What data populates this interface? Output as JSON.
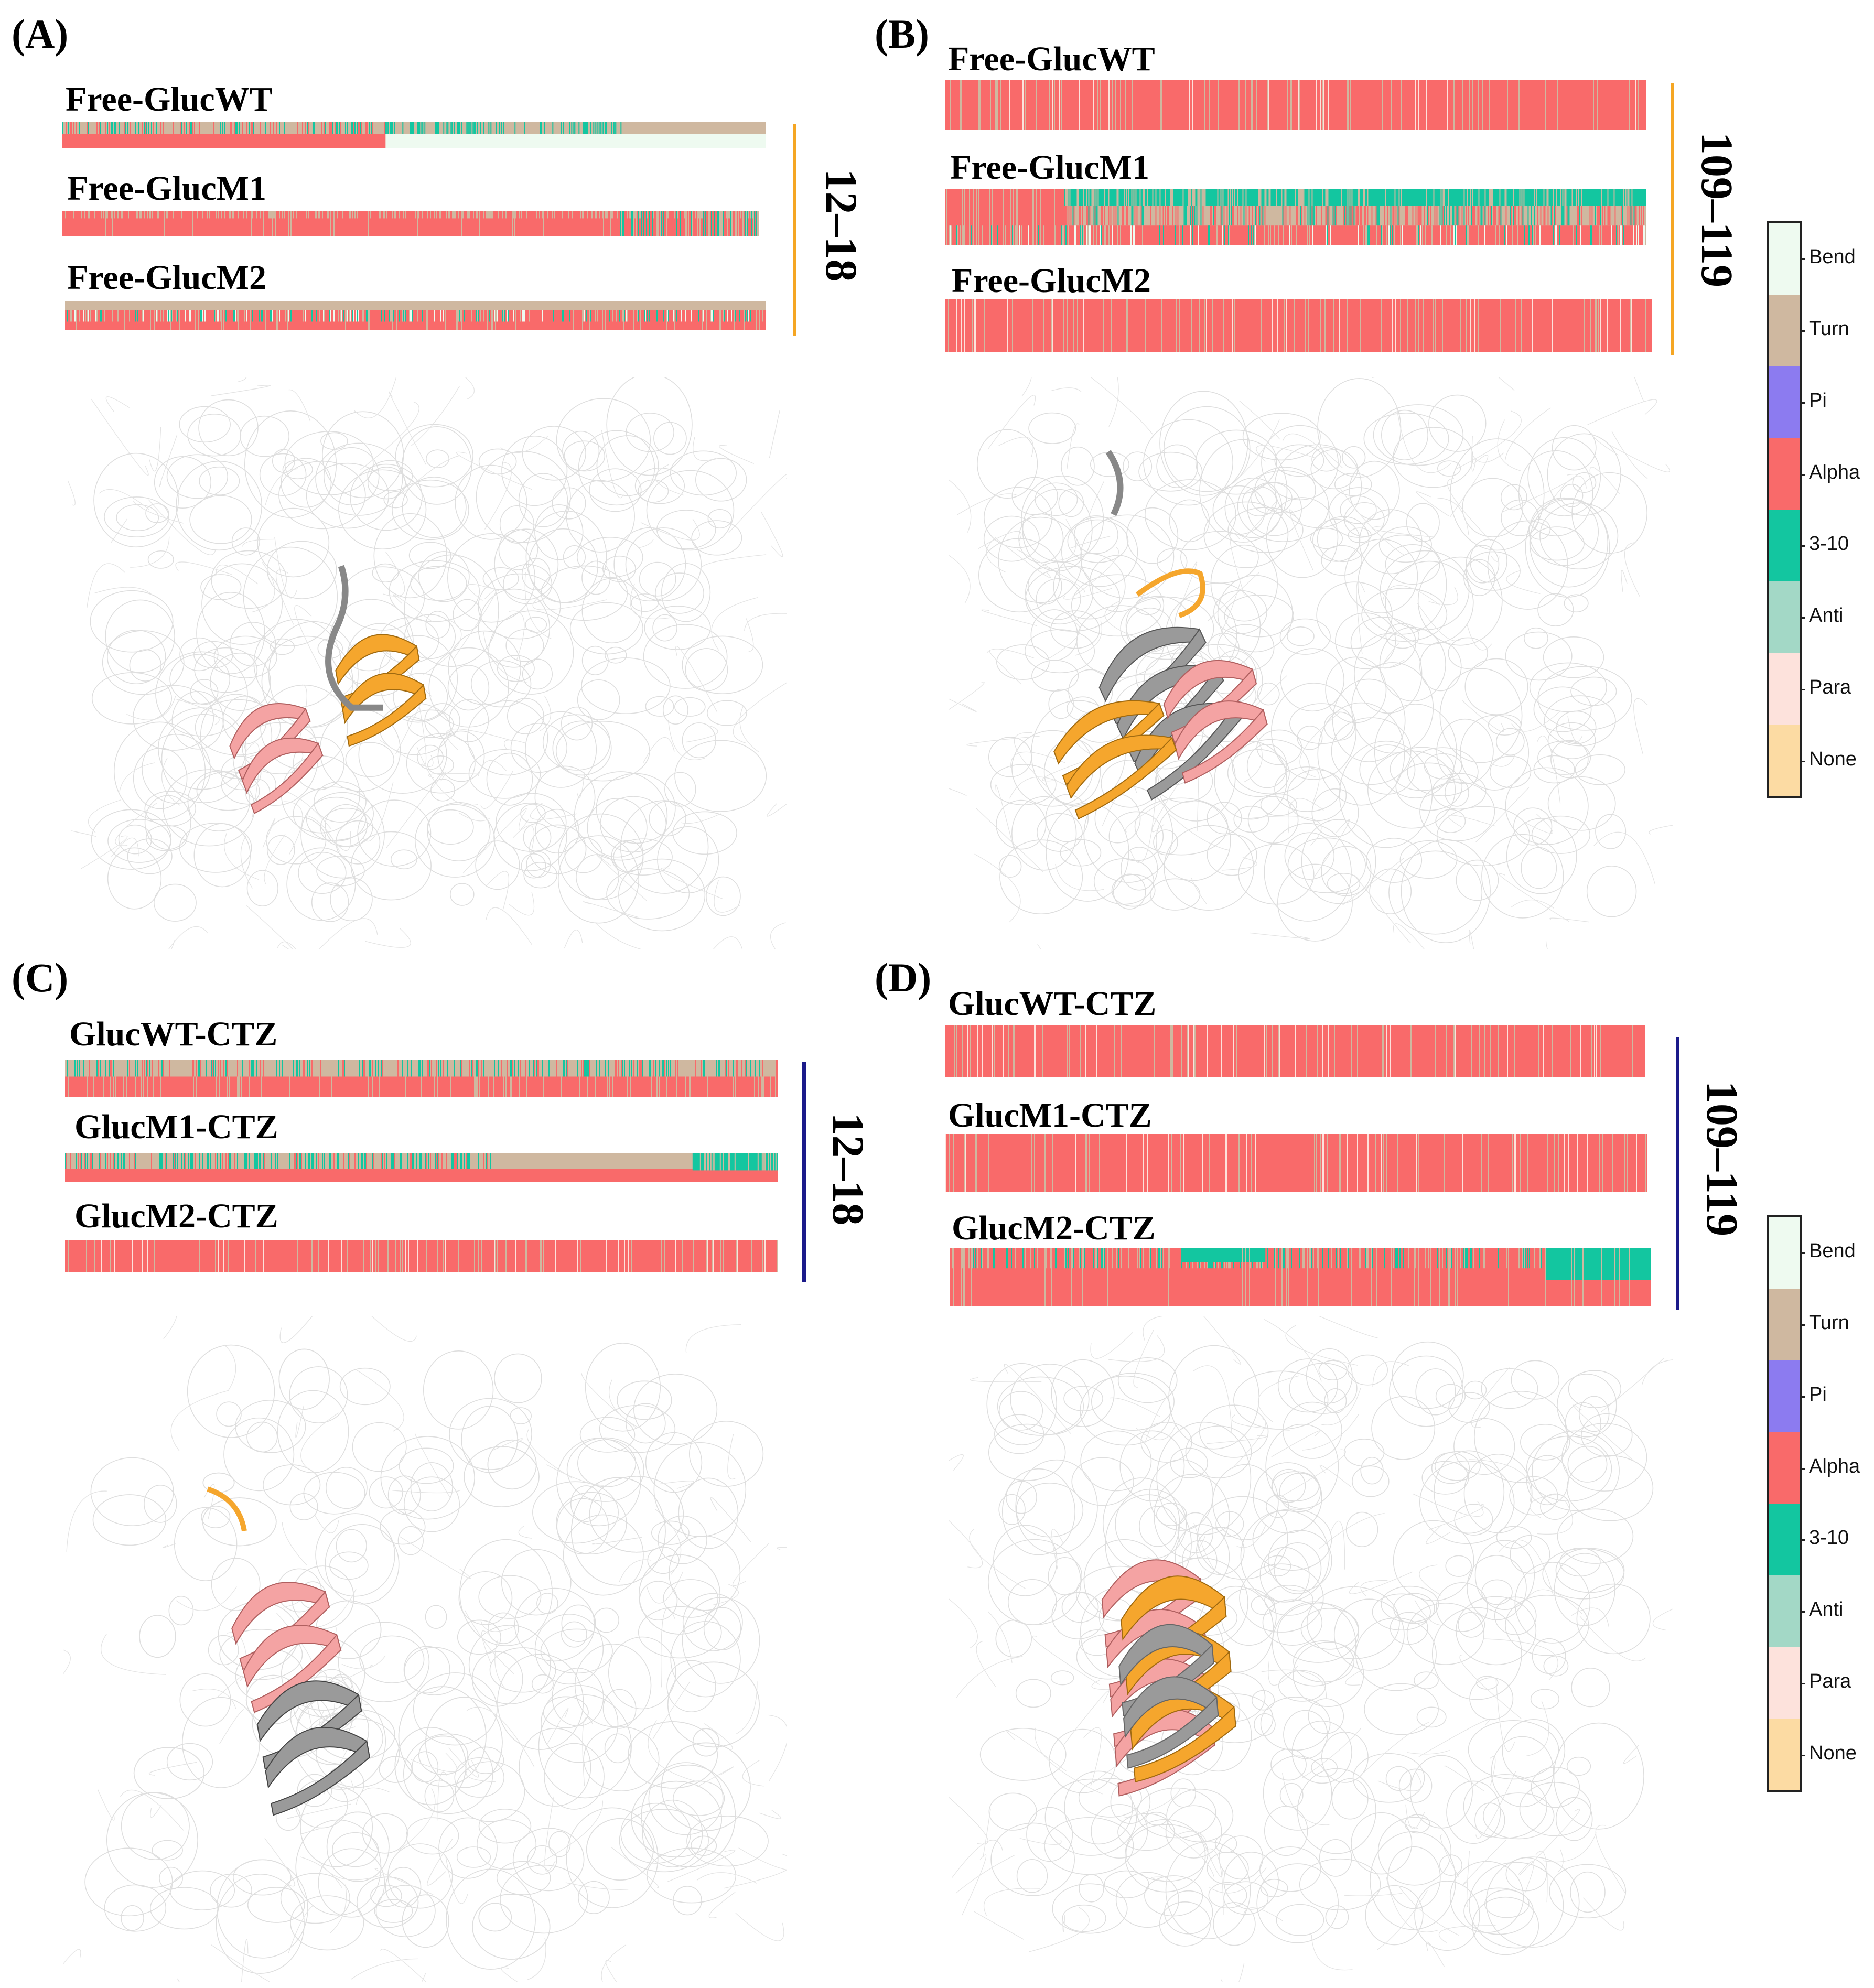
{
  "colors": {
    "Bend": "#eefaf0",
    "Turn": "#cfb8a0",
    "Pi": "#8c7bf0",
    "Alpha": "#f96a6a",
    "3-10": "#13c6a0",
    "Anti": "#a3d8c6",
    "Para": "#fde2dc",
    "None": "#fcdba3",
    "orange_line": "#f5a623",
    "navy_line": "#1b1a8a",
    "ribbon_orange": "#f5a62d",
    "ribbon_pink": "#f4a3a3",
    "ribbon_grey": "#9a9a9a"
  },
  "panels": [
    {
      "letter": "(A)",
      "range": "12–18",
      "tracks": [
        {
          "label": "Free-GlucWT",
          "pattern": "wt12"
        },
        {
          "label": "Free-GlucM1",
          "pattern": "m1_12"
        },
        {
          "label": "Free-GlucM2",
          "pattern": "m2_12"
        }
      ]
    },
    {
      "letter": "(B)",
      "range": "109–119",
      "tracks": [
        {
          "label": "Free-GlucWT",
          "pattern": "alpha"
        },
        {
          "label": "Free-GlucM1",
          "pattern": "m1_109"
        },
        {
          "label": "Free-GlucM2",
          "pattern": "alpha"
        }
      ]
    },
    {
      "letter": "(C)",
      "range": "12–18",
      "tracks": [
        {
          "label": "GlucWT-CTZ",
          "pattern": "ctz_wt12"
        },
        {
          "label": "GlucM1-CTZ",
          "pattern": "ctz_m1_12"
        },
        {
          "label": "GlucM2-CTZ",
          "pattern": "alpha"
        }
      ]
    },
    {
      "letter": "(D)",
      "range": "109–119",
      "tracks": [
        {
          "label": "GlucWT-CTZ",
          "pattern": "alpha"
        },
        {
          "label": "GlucM1-CTZ",
          "pattern": "alpha"
        },
        {
          "label": "GlucM2-CTZ",
          "pattern": "ctz_m2_109"
        }
      ]
    }
  ],
  "legend": [
    "Bend",
    "Turn",
    "Pi",
    "Alpha",
    "3-10",
    "Anti",
    "Para",
    "None"
  ]
}
